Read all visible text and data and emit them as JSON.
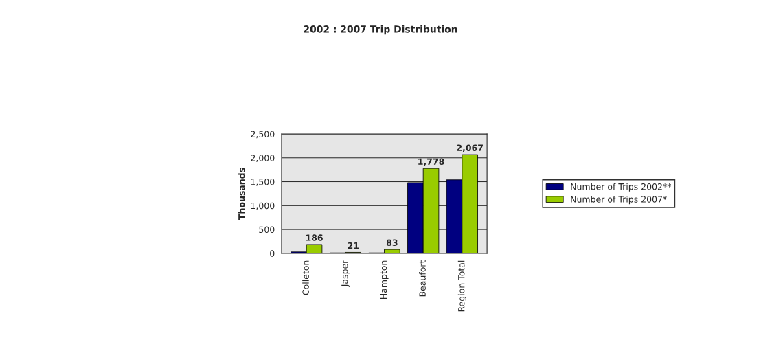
{
  "chart_data": {
    "type": "bar",
    "title": "2002 : 2007 Trip Distribution",
    "ylabel": "Thousands",
    "categories": [
      "Colleton",
      "Jasper",
      "Hampton",
      "Beaufort",
      "Region Total"
    ],
    "series": [
      {
        "name": "Number of Trips 2002**",
        "color": "#000080",
        "values": [
          30,
          10,
          10,
          1480,
          1540
        ]
      },
      {
        "name": "Number of Trips 2007*",
        "color": "#99cc00",
        "values": [
          186,
          21,
          83,
          1778,
          2067
        ],
        "value_labels": [
          "186",
          "21",
          "83",
          "1,778",
          "2,067"
        ]
      }
    ],
    "ylim": [
      0,
      2500
    ],
    "yticks": [
      0,
      500,
      {
        "value": 1000,
        "label": "1,000"
      },
      {
        "value": 1500,
        "label": "1,500"
      },
      {
        "value": 2000,
        "label": "2,000"
      },
      {
        "value": 2500,
        "label": "2,500"
      }
    ],
    "grid": "y",
    "legend": "right"
  }
}
